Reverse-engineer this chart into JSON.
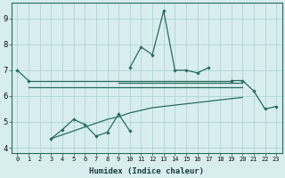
{
  "xlabel": "Humidex (Indice chaleur)",
  "x": [
    0,
    1,
    2,
    3,
    4,
    5,
    6,
    7,
    8,
    9,
    10,
    11,
    12,
    13,
    14,
    15,
    16,
    17,
    18,
    19,
    20,
    21,
    22,
    23
  ],
  "line_top": [
    7.0,
    6.6,
    null,
    null,
    null,
    null,
    null,
    null,
    null,
    null,
    7.1,
    7.9,
    7.6,
    9.3,
    7.0,
    7.0,
    6.9,
    7.1,
    null,
    6.6,
    6.6,
    6.2,
    5.5,
    5.6
  ],
  "line_flat1": [
    null,
    6.6,
    6.6,
    6.6,
    6.6,
    6.6,
    6.6,
    6.6,
    6.6,
    6.6,
    6.6,
    6.6,
    6.6,
    6.6,
    6.6,
    6.6,
    6.6,
    6.6,
    6.6,
    6.6,
    null,
    null,
    null,
    null
  ],
  "line_flat2": [
    null,
    6.35,
    6.35,
    6.35,
    6.35,
    6.35,
    6.35,
    6.35,
    6.35,
    6.35,
    6.35,
    6.35,
    6.35,
    6.35,
    6.35,
    6.35,
    6.35,
    6.35,
    6.35,
    6.35,
    6.35,
    null,
    null,
    null
  ],
  "line_flat3": [
    null,
    null,
    null,
    null,
    null,
    null,
    null,
    null,
    null,
    6.5,
    6.5,
    6.5,
    6.5,
    6.5,
    6.5,
    6.5,
    6.5,
    6.5,
    6.5,
    6.5,
    6.5,
    null,
    null,
    null
  ],
  "line_lower_jagged": [
    null,
    null,
    null,
    4.35,
    4.7,
    5.1,
    4.9,
    4.45,
    4.6,
    5.3,
    4.65,
    null,
    null,
    null,
    null,
    null,
    null,
    null,
    null,
    null,
    null,
    null,
    null,
    null
  ],
  "line_lower_smooth": [
    null,
    null,
    null,
    4.35,
    4.5,
    4.65,
    4.8,
    4.95,
    5.1,
    5.2,
    5.35,
    5.45,
    5.55,
    5.6,
    5.65,
    5.7,
    5.75,
    5.8,
    5.85,
    5.9,
    5.95,
    null,
    null,
    null
  ],
  "color": "#286b5e",
  "bg_color": "#d8eeee",
  "grid_color": "#afd4d4",
  "ylim": [
    3.8,
    9.6
  ],
  "yticks": [
    4,
    5,
    6,
    7,
    8,
    9
  ],
  "xlim": [
    -0.5,
    23.5
  ],
  "marker": "D"
}
